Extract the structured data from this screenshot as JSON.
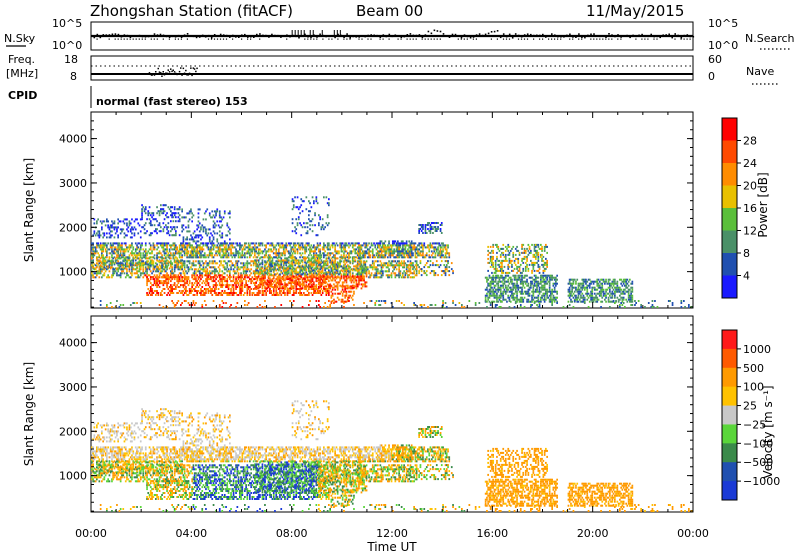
{
  "header": {
    "title": "Zhongshan Station (fitACF)",
    "beam": "Beam 00",
    "date": "11/May/2015"
  },
  "sky_panel": {
    "left_label": "N.Sky",
    "right_label": "N.Search",
    "left_ticks": [
      "10^5",
      "10^0"
    ],
    "right_ticks": [
      "10^5",
      "10^0"
    ]
  },
  "freq_panel": {
    "left_label_1": "Freq.",
    "left_label_2": "[MHz]",
    "right_label": "Nave",
    "left_ticks": [
      "18",
      "8"
    ],
    "right_ticks": [
      "60",
      "0"
    ]
  },
  "cpid": {
    "label": "CPID",
    "text": "normal (fast stereo) 153"
  },
  "colors": {
    "power_scale": [
      "#1a1aff",
      "#2050b0",
      "#4a9068",
      "#5abf3a",
      "#e8c000",
      "#ff8c00",
      "#ff4a00",
      "#ff0000"
    ],
    "velocity_scale": [
      "#ff1a1a",
      "#ff5a00",
      "#ff9a00",
      "#ffc200",
      "#c8c8c8",
      "#5ad63a",
      "#3a8a4a",
      "#2050b0",
      "#1a3ad6"
    ]
  },
  "chart_data": [
    {
      "type": "heatmap",
      "name": "power",
      "xlabel": "",
      "ylabel": "Slant Range [km]",
      "xlim": [
        0,
        24
      ],
      "ylim": [
        180,
        4600
      ],
      "yticks": [
        "1000",
        "2000",
        "3000",
        "4000"
      ],
      "colorbar_label": "Power [dB]",
      "colorbar_ticks": [
        "4",
        "8",
        "12",
        "16",
        "20",
        "24",
        "28"
      ],
      "note": "range-time echo power, scattered echoes mostly between 300 and 2500 km"
    },
    {
      "type": "heatmap",
      "name": "velocity",
      "xlabel": "Time UT",
      "ylabel": "Slant Range [km]",
      "xlim": [
        0,
        24
      ],
      "ylim": [
        180,
        4600
      ],
      "xticks": [
        "00:00",
        "04:00",
        "08:00",
        "12:00",
        "16:00",
        "20:00",
        "00:00"
      ],
      "yticks": [
        "1000",
        "2000",
        "3000",
        "4000"
      ],
      "colorbar_label": "Velocity [m s⁻¹]",
      "colorbar_ticks": [
        "1000",
        "500",
        "100",
        "25",
        "−25",
        "−100",
        "−500",
        "−1000"
      ]
    }
  ]
}
